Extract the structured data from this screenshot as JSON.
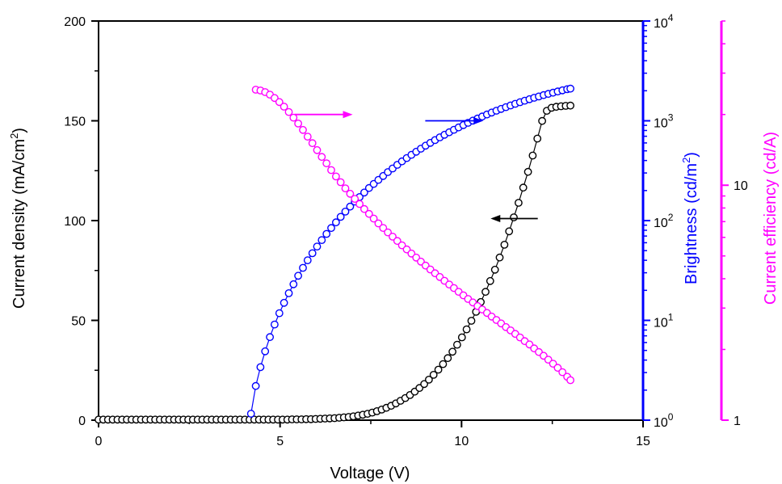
{
  "chart_data": {
    "type": "scatter",
    "title": "",
    "xlabel": "Voltage (V)",
    "xlim": [
      0,
      15
    ],
    "x_ticks": [
      "0",
      "5",
      "10",
      "15"
    ],
    "axes": {
      "current_density": {
        "label": "Current density (mA/cm²)",
        "label_main": "Current density (mA/cm",
        "label_sup": "2",
        "label_end": ")",
        "scale": "linear",
        "lim": [
          0,
          200
        ],
        "ticks": [
          "0",
          "50",
          "100",
          "150",
          "200"
        ],
        "color": "#000000",
        "side": "left"
      },
      "brightness": {
        "label": "Brightness (cd/m²)",
        "label_main": "Brightness (cd/m",
        "label_sup": "2",
        "label_end": ")",
        "scale": "log",
        "lim": [
          1,
          10000
        ],
        "tick_base": "10",
        "tick_exponents": [
          "0",
          "1",
          "2",
          "3",
          "4"
        ],
        "color": "#0000ff",
        "side": "right"
      },
      "current_efficiency": {
        "label": "Current efficiency (cd/A)",
        "scale": "log",
        "lim": [
          1,
          50
        ],
        "ticks": [
          "1",
          "10"
        ],
        "color": "#ff00ff",
        "side": "right-outer"
      }
    },
    "series": [
      {
        "axis": "current_density",
        "color": "#000000",
        "x": [
          0.0,
          0.13,
          0.26,
          0.39,
          0.52,
          0.65,
          0.78,
          0.91,
          1.04,
          1.17,
          1.3,
          1.43,
          1.56,
          1.69,
          1.82,
          1.95,
          2.08,
          2.21,
          2.34,
          2.47,
          2.6,
          2.73,
          2.86,
          2.99,
          3.12,
          3.25,
          3.38,
          3.51,
          3.64,
          3.77,
          3.9,
          4.03,
          4.16,
          4.29,
          4.42,
          4.55,
          4.68,
          4.81,
          4.94,
          5.07,
          5.2,
          5.33,
          5.46,
          5.59,
          5.72,
          5.85,
          5.98,
          6.11,
          6.24,
          6.37,
          6.5,
          6.63,
          6.76,
          6.89,
          7.02,
          7.15,
          7.28,
          7.41,
          7.54,
          7.67,
          7.8,
          7.93,
          8.06,
          8.19,
          8.32,
          8.45,
          8.58,
          8.71,
          8.84,
          8.97,
          9.1,
          9.23,
          9.36,
          9.49,
          9.62,
          9.75,
          9.88,
          10.01,
          10.14,
          10.27,
          10.4,
          10.53,
          10.66,
          10.79,
          10.92,
          11.05,
          11.18,
          11.31,
          11.44,
          11.57,
          11.7,
          11.83,
          11.96,
          12.09,
          12.22,
          12.35,
          12.48,
          12.61,
          12.74,
          12.87,
          13.0
        ],
        "values": [
          0.3,
          0.3,
          0.3,
          0.3,
          0.3,
          0.3,
          0.3,
          0.3,
          0.3,
          0.3,
          0.3,
          0.3,
          0.3,
          0.3,
          0.3,
          0.3,
          0.3,
          0.3,
          0.3,
          0.3,
          0.3,
          0.3,
          0.3,
          0.3,
          0.3,
          0.3,
          0.3,
          0.3,
          0.3,
          0.3,
          0.3,
          0.3,
          0.3,
          0.3,
          0.3,
          0.3,
          0.3,
          0.3,
          0.3,
          0.3,
          0.3,
          0.4,
          0.4,
          0.4,
          0.5,
          0.5,
          0.6,
          0.7,
          0.8,
          0.9,
          1.0,
          1.2,
          1.4,
          1.6,
          1.9,
          2.3,
          2.7,
          3.2,
          3.8,
          4.5,
          5.3,
          6.2,
          7.2,
          8.4,
          9.7,
          11.1,
          12.6,
          14.3,
          16.1,
          18.1,
          20.3,
          22.7,
          25.3,
          28.1,
          31.1,
          34.3,
          37.8,
          41.5,
          45.5,
          49.8,
          54.3,
          59.2,
          64.3,
          69.7,
          75.4,
          81.5,
          87.9,
          94.6,
          101.6,
          108.9,
          116.5,
          124.4,
          132.6,
          141.1,
          149.9,
          155.0,
          156.5,
          157.0,
          157.3,
          157.5,
          157.6
        ]
      },
      {
        "axis": "brightness",
        "color": "#0000ff",
        "x": [
          4.2,
          4.33,
          4.46,
          4.59,
          4.72,
          4.85,
          4.98,
          5.11,
          5.24,
          5.37,
          5.5,
          5.63,
          5.76,
          5.89,
          6.02,
          6.15,
          6.28,
          6.41,
          6.54,
          6.67,
          6.8,
          6.93,
          7.06,
          7.19,
          7.32,
          7.45,
          7.58,
          7.71,
          7.84,
          7.97,
          8.1,
          8.23,
          8.36,
          8.49,
          8.62,
          8.75,
          8.88,
          9.01,
          9.14,
          9.27,
          9.4,
          9.53,
          9.66,
          9.79,
          9.92,
          10.05,
          10.18,
          10.31,
          10.44,
          10.57,
          10.7,
          10.83,
          10.96,
          11.09,
          11.22,
          11.35,
          11.48,
          11.61,
          11.74,
          11.87,
          12.0,
          12.13,
          12.26,
          12.39,
          12.52,
          12.65,
          12.78,
          12.91,
          13.0
        ],
        "values": [
          1.16,
          2.2,
          3.4,
          4.9,
          6.8,
          9.1,
          11.8,
          15.0,
          18.7,
          23.0,
          28.0,
          33.6,
          40.0,
          47.1,
          55.0,
          63.8,
          73.5,
          84.3,
          96.0,
          109,
          123,
          138,
          155,
          172,
          191,
          212,
          233,
          256,
          280,
          306,
          333,
          362,
          392,
          423,
          456,
          490,
          526,
          563,
          601,
          641,
          682,
          724,
          768,
          813,
          859,
          906,
          954,
          1003,
          1053,
          1104,
          1156,
          1209,
          1262,
          1316,
          1370,
          1425,
          1480,
          1535,
          1590,
          1645,
          1700,
          1754,
          1808,
          1862,
          1915,
          1968,
          2020,
          2072,
          2100
        ]
      },
      {
        "axis": "current_efficiency",
        "color": "#ff00ff",
        "x": [
          4.33,
          4.46,
          4.59,
          4.72,
          4.85,
          4.98,
          5.11,
          5.24,
          5.37,
          5.5,
          5.63,
          5.76,
          5.89,
          6.02,
          6.15,
          6.28,
          6.41,
          6.54,
          6.67,
          6.8,
          6.93,
          7.06,
          7.19,
          7.32,
          7.45,
          7.58,
          7.71,
          7.84,
          7.97,
          8.1,
          8.23,
          8.36,
          8.49,
          8.62,
          8.75,
          8.88,
          9.01,
          9.14,
          9.27,
          9.4,
          9.53,
          9.66,
          9.79,
          9.92,
          10.05,
          10.18,
          10.31,
          10.44,
          10.57,
          10.7,
          10.83,
          10.96,
          11.09,
          11.22,
          11.35,
          11.48,
          11.61,
          11.74,
          11.87,
          12.0,
          12.13,
          12.26,
          12.39,
          12.52,
          12.65,
          12.78,
          12.91,
          13.0
        ],
        "values": [
          25.5,
          25.3,
          24.9,
          24.3,
          23.5,
          22.6,
          21.6,
          20.5,
          19.4,
          18.3,
          17.2,
          16.1,
          15.1,
          14.1,
          13.2,
          12.4,
          11.6,
          10.9,
          10.3,
          9.7,
          9.2,
          8.75,
          8.32,
          7.92,
          7.55,
          7.21,
          6.88,
          6.58,
          6.3,
          6.04,
          5.79,
          5.55,
          5.33,
          5.12,
          4.92,
          4.73,
          4.55,
          4.38,
          4.22,
          4.07,
          3.92,
          3.78,
          3.65,
          3.52,
          3.4,
          3.28,
          3.17,
          3.06,
          2.96,
          2.86,
          2.76,
          2.67,
          2.58,
          2.49,
          2.41,
          2.33,
          2.25,
          2.17,
          2.1,
          2.02,
          1.95,
          1.88,
          1.81,
          1.74,
          1.67,
          1.6,
          1.53,
          1.48
        ]
      }
    ],
    "annotations": [
      {
        "type": "arrow",
        "direction": "left",
        "color": "#000000",
        "x_from": 12.1,
        "x_to": 10.8,
        "y": 101,
        "axis": "current_density"
      },
      {
        "type": "arrow",
        "direction": "right",
        "color": "#0000ff",
        "x_from": 9.0,
        "x_to": 10.6,
        "y": 1000,
        "axis": "brightness"
      },
      {
        "type": "arrow",
        "direction": "right",
        "color": "#ff00ff",
        "x_from": 5.4,
        "x_to": 7.0,
        "y": 20,
        "axis": "current_efficiency"
      }
    ],
    "grid": false,
    "legend": "none"
  }
}
